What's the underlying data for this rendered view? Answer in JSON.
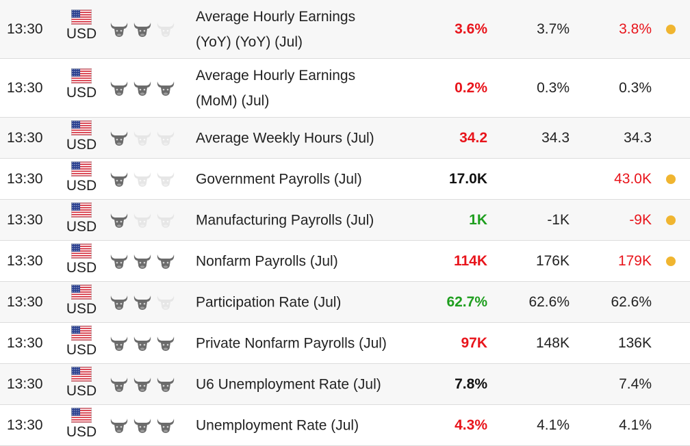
{
  "colors": {
    "red": "#e8141b",
    "green": "#1e9e1e",
    "black": "#111111",
    "bull_active": "#6b6b6b",
    "bull_inactive": "#e6e6e6",
    "revision_dot": "#f0b530"
  },
  "rows": [
    {
      "time": "13:30",
      "currency": "USD",
      "flag": "us-flag-icon",
      "importance": 2,
      "event_lines": [
        "Average Hourly Earnings",
        "(YoY) (YoY) (Jul)"
      ],
      "actual": "3.6%",
      "actual_color": "red",
      "forecast": "3.7%",
      "previous": "3.8%",
      "previous_color": "red",
      "revised": true
    },
    {
      "time": "13:30",
      "currency": "USD",
      "flag": "us-flag-icon",
      "importance": 3,
      "event_lines": [
        "Average Hourly Earnings",
        "(MoM) (Jul)"
      ],
      "actual": "0.2%",
      "actual_color": "red",
      "forecast": "0.3%",
      "previous": "0.3%",
      "previous_color": "black",
      "revised": false
    },
    {
      "time": "13:30",
      "currency": "USD",
      "flag": "us-flag-icon",
      "importance": 1,
      "event_lines": [
        "Average Weekly Hours (Jul)"
      ],
      "actual": "34.2",
      "actual_color": "red",
      "forecast": "34.3",
      "previous": "34.3",
      "previous_color": "black",
      "revised": false
    },
    {
      "time": "13:30",
      "currency": "USD",
      "flag": "us-flag-icon",
      "importance": 1,
      "event_lines": [
        "Government Payrolls (Jul)"
      ],
      "actual": "17.0K",
      "actual_color": "black",
      "forecast": "",
      "previous": "43.0K",
      "previous_color": "red",
      "revised": true
    },
    {
      "time": "13:30",
      "currency": "USD",
      "flag": "us-flag-icon",
      "importance": 1,
      "event_lines": [
        "Manufacturing Payrolls (Jul)"
      ],
      "actual": "1K",
      "actual_color": "green",
      "forecast": "-1K",
      "previous": "-9K",
      "previous_color": "red",
      "revised": true
    },
    {
      "time": "13:30",
      "currency": "USD",
      "flag": "us-flag-icon",
      "importance": 3,
      "event_lines": [
        "Nonfarm Payrolls (Jul)"
      ],
      "actual": "114K",
      "actual_color": "red",
      "forecast": "176K",
      "previous": "179K",
      "previous_color": "red",
      "revised": true
    },
    {
      "time": "13:30",
      "currency": "USD",
      "flag": "us-flag-icon",
      "importance": 2,
      "event_lines": [
        "Participation Rate (Jul)"
      ],
      "actual": "62.7%",
      "actual_color": "green",
      "forecast": "62.6%",
      "previous": "62.6%",
      "previous_color": "black",
      "revised": false
    },
    {
      "time": "13:30",
      "currency": "USD",
      "flag": "us-flag-icon",
      "importance": 3,
      "event_lines": [
        "Private Nonfarm Payrolls (Jul)"
      ],
      "actual": "97K",
      "actual_color": "red",
      "forecast": "148K",
      "previous": "136K",
      "previous_color": "black",
      "revised": false
    },
    {
      "time": "13:30",
      "currency": "USD",
      "flag": "us-flag-icon",
      "importance": 3,
      "event_lines": [
        "U6 Unemployment Rate (Jul)"
      ],
      "actual": "7.8%",
      "actual_color": "black",
      "forecast": "",
      "previous": "7.4%",
      "previous_color": "black",
      "revised": false
    },
    {
      "time": "13:30",
      "currency": "USD",
      "flag": "us-flag-icon",
      "importance": 3,
      "event_lines": [
        "Unemployment Rate (Jul)"
      ],
      "actual": "4.3%",
      "actual_color": "red",
      "forecast": "4.1%",
      "previous": "4.1%",
      "previous_color": "black",
      "revised": false
    }
  ]
}
